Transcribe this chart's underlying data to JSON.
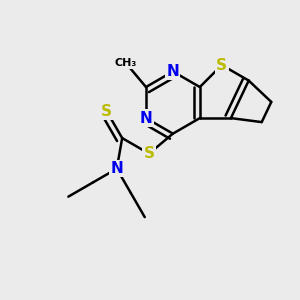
{
  "bg_color": "#ebebeb",
  "atom_colors": {
    "C": "#000000",
    "N": "#0000ee",
    "S": "#bbbb00",
    "H": "#000000"
  },
  "bond_color": "#000000",
  "bond_width": 1.8,
  "font_size_atoms": 11
}
